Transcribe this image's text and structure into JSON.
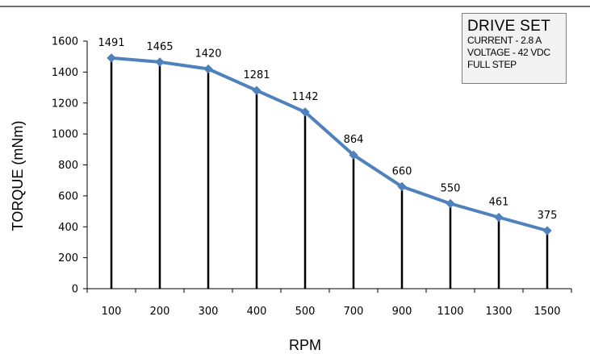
{
  "chart_data": {
    "type": "line",
    "categories": [
      "100",
      "200",
      "300",
      "400",
      "500",
      "700",
      "900",
      "1100",
      "1300",
      "1500"
    ],
    "series": [
      {
        "values": [
          1491,
          1465,
          1420,
          1281,
          1142,
          864,
          660,
          550,
          461,
          375
        ],
        "color": "#4f81bd"
      }
    ],
    "data_labels": [
      "1491",
      "1465",
      "1420",
      "1281",
      "1142",
      "864",
      "660",
      "550",
      "461",
      "375"
    ],
    "drop_lines": true,
    "xlabel": "RPM",
    "ylabel": "TORQUE (mNm)",
    "ylim": [
      0,
      1600
    ],
    "yticks": [
      "0",
      "200",
      "400",
      "600",
      "800",
      "1000",
      "1200",
      "1400",
      "1600"
    ],
    "grid": false,
    "annotation": {
      "title": "DRIVE SET",
      "lines": [
        "CURRENT - 2.8 A",
        "VOLTAGE - 42 VDC",
        "FULL STEP"
      ]
    }
  }
}
